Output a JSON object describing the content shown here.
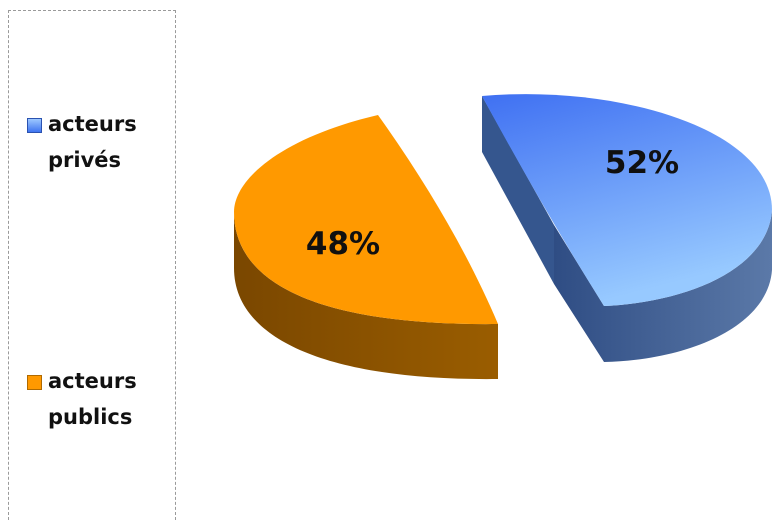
{
  "chart_data": {
    "type": "pie",
    "style": "3d-exploded",
    "categories": [
      "acteurs\nprivés",
      "acteurs\npublics"
    ],
    "values": [
      52,
      48
    ],
    "data_labels": [
      "52%",
      "48%"
    ],
    "colors": {
      "acteurs_prives_top_light": "#8fc3ff",
      "acteurs_prives_top_dark": "#3f74f0",
      "acteurs_prives_side": "#3d5f93",
      "acteurs_publics_top": "#ff9900",
      "acteurs_publics_side": "#8a5200"
    },
    "legend": {
      "placement": "left",
      "border": "dashed"
    },
    "title": "",
    "xlabel": "",
    "ylabel": ""
  }
}
